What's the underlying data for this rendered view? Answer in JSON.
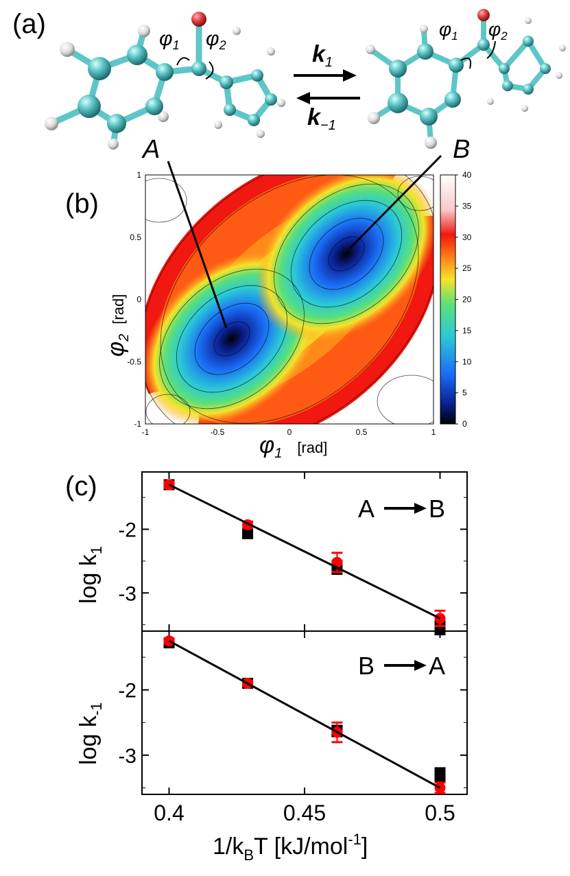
{
  "panel_a": {
    "label": "(a)",
    "phi1": "φ",
    "phi1_sub": "1",
    "phi2": "φ",
    "phi2_sub": "2",
    "k1": "k",
    "k1_sub": "1",
    "kminus1": "k",
    "kminus1_sub": "−1",
    "state_a": "A",
    "state_b": "B"
  },
  "panel_b": {
    "label": "(b)",
    "xlabel": "φ",
    "xlabel_sub": "1",
    "xlabel_unit": "[rad]",
    "ylabel": "φ",
    "ylabel_sub": "2",
    "ylabel_unit": "[rad]",
    "xticks": [
      "-1",
      "-0.5",
      "0",
      "0.5",
      "1"
    ],
    "yticks": [
      "1",
      "0.5",
      "0",
      "-0.5",
      "-1"
    ],
    "colorbar_ticks": [
      "40",
      "35",
      "30",
      "25",
      "20",
      "15",
      "10",
      "5",
      "0"
    ],
    "colors": {
      "c0": "#000000",
      "c1": "#0a1f8f",
      "c2": "#1a6cf5",
      "c3": "#2bc9d6",
      "c4": "#5be07a",
      "c5": "#f5e32a",
      "c6": "#ff8a1a",
      "c7": "#f01810",
      "c8": "#ffffff"
    }
  },
  "panel_c": {
    "label": "(c)",
    "top_annotation": [
      "A",
      "B"
    ],
    "bottom_annotation": [
      "B",
      "A"
    ],
    "ylabel_top": "log k",
    "ylabel_top_sub": "1",
    "ylabel_bottom": "log k",
    "ylabel_bottom_sub": "-1",
    "xlabel_pre": "1/k",
    "xlabel_sub": "B",
    "xlabel_post": "T [kJ/mol",
    "xlabel_sup": "-1",
    "xlabel_end": "]",
    "colors": {
      "black": "#000000",
      "red": "#ff0000"
    }
  },
  "chart_data": [
    {
      "type": "heatmap",
      "title": "",
      "xlabel": "φ1 [rad]",
      "ylabel": "φ2 [rad]",
      "xlim": [
        -1,
        1
      ],
      "ylim": [
        -1,
        1
      ],
      "colorbar_range": [
        0,
        40
      ],
      "minima": [
        {
          "name": "A",
          "phi1": -0.35,
          "phi2": -0.35,
          "value": 0
        },
        {
          "name": "B",
          "phi1": 0.35,
          "phi2": 0.35,
          "value": 0
        }
      ]
    },
    {
      "type": "scatter",
      "title": "A → B",
      "xlabel": "1/kBT [kJ/mol-1]",
      "ylabel": "log k1",
      "xlim": [
        0.39,
        0.51
      ],
      "ylim": [
        -3.6,
        -1.1
      ],
      "yticks": [
        -2,
        -3
      ],
      "series": [
        {
          "name": "black squares",
          "color": "black",
          "x": [
            0.4,
            0.429,
            0.462,
            0.5
          ],
          "y": [
            -1.3,
            -2.07,
            -2.6,
            -3.55
          ],
          "err": [
            0.06,
            0.06,
            0.1,
            0.1
          ]
        },
        {
          "name": "red circles",
          "color": "red",
          "x": [
            0.4,
            0.429,
            0.462,
            0.5
          ],
          "y": [
            -1.3,
            -1.93,
            -2.52,
            -3.4
          ],
          "err": [
            0.05,
            0.05,
            0.15,
            0.12
          ]
        },
        {
          "name": "fit",
          "color": "black",
          "x": [
            0.4,
            0.5
          ],
          "y": [
            -1.3,
            -3.4
          ]
        }
      ]
    },
    {
      "type": "scatter",
      "title": "B → A",
      "xlabel": "1/kBT [kJ/mol-1]",
      "ylabel": "log k-1",
      "xlim": [
        0.39,
        0.51
      ],
      "xticks": [
        0.4,
        0.45,
        0.5
      ],
      "ylim": [
        -3.6,
        -1.1
      ],
      "yticks": [
        -2,
        -3
      ],
      "series": [
        {
          "name": "black squares",
          "color": "black",
          "x": [
            0.4,
            0.429,
            0.462,
            0.5
          ],
          "y": [
            -1.28,
            -1.9,
            -2.63,
            -3.3
          ],
          "err": [
            0.06,
            0.05,
            0.08,
            0.1
          ]
        },
        {
          "name": "red circles",
          "color": "red",
          "x": [
            0.4,
            0.429,
            0.462,
            0.5
          ],
          "y": [
            -1.25,
            -1.9,
            -2.65,
            -3.5
          ],
          "err": [
            0.04,
            0.04,
            0.15,
            0.08
          ]
        },
        {
          "name": "fit",
          "color": "black",
          "x": [
            0.4,
            0.5
          ],
          "y": [
            -1.25,
            -3.5
          ]
        }
      ]
    }
  ]
}
